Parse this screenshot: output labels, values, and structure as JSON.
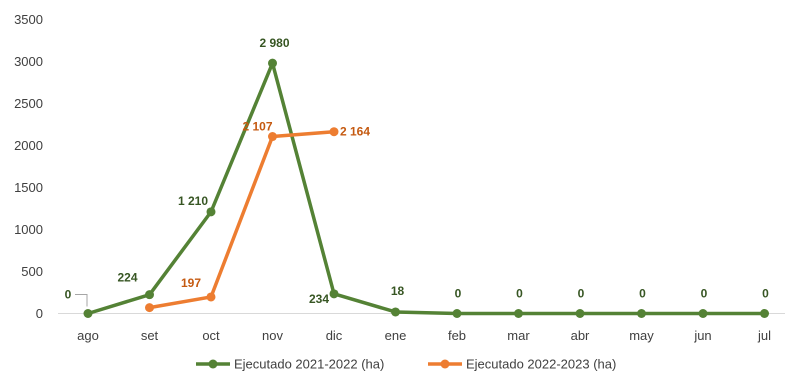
{
  "chart_data": {
    "type": "line",
    "title": "",
    "xlabel": "",
    "ylabel": "",
    "categories": [
      "ago",
      "set",
      "oct",
      "nov",
      "dic",
      "ene",
      "feb",
      "mar",
      "abr",
      "may",
      "jun",
      "jul"
    ],
    "ylim": [
      0,
      3500
    ],
    "yticks": [
      0,
      500,
      1000,
      1500,
      2000,
      2500,
      3000,
      3500
    ],
    "grid": false,
    "legend_position": "bottom",
    "series": [
      {
        "name": "Ejecutado 2021-2022 (ha)",
        "color": "#548235",
        "values": [
          0,
          224,
          1210,
          2980,
          234,
          18,
          0,
          0,
          0,
          0,
          0,
          0
        ],
        "labels": [
          "0",
          "224",
          "1 210",
          "2 980",
          "234",
          "18",
          "0",
          "0",
          "0",
          "0",
          "0",
          "0"
        ]
      },
      {
        "name": "Ejecutado 2022-2023 (ha)",
        "color": "#ED7D31",
        "values": [
          null,
          70,
          197,
          2107,
          2164,
          null,
          null,
          null,
          null,
          null,
          null,
          null
        ],
        "labels": [
          null,
          null,
          "197",
          "2 107",
          "2 164",
          null,
          null,
          null,
          null,
          null,
          null,
          null
        ]
      }
    ]
  }
}
